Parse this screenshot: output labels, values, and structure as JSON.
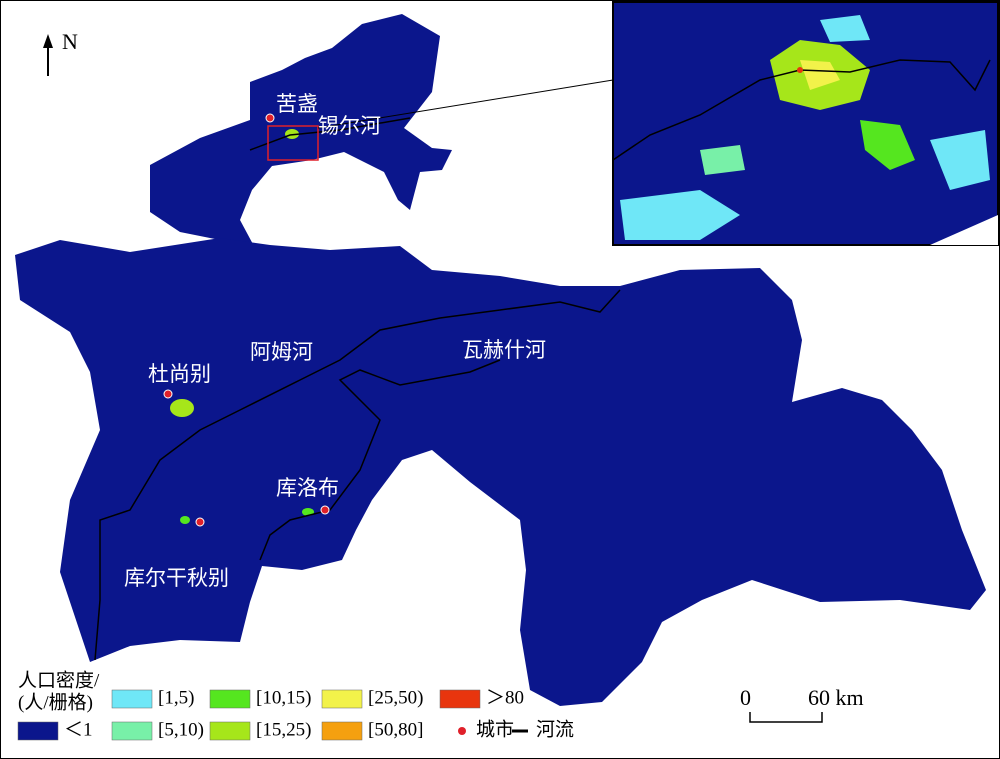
{
  "north_arrow": "N",
  "place_labels": [
    {
      "text": "苦盏",
      "kind": "city"
    },
    {
      "text": "锡尔河",
      "kind": "river"
    },
    {
      "text": "阿姆河",
      "kind": "river"
    },
    {
      "text": "瓦赫什河",
      "kind": "river"
    },
    {
      "text": "杜尚别",
      "kind": "city"
    },
    {
      "text": "库洛布",
      "kind": "city"
    },
    {
      "text": "库尔干秋别",
      "kind": "city"
    }
  ],
  "legend": {
    "title": [
      "人口密度/",
      "(人/栅格)"
    ],
    "items": [
      {
        "label": "＜1",
        "color": "#0b168c"
      },
      {
        "label": "[1,5)",
        "color": "#6fe7f7"
      },
      {
        "label": "[5,10)",
        "color": "#78f0a8"
      },
      {
        "label": "[10,15)",
        "color": "#55e61f"
      },
      {
        "label": "[15,25)",
        "color": "#a6e61a"
      },
      {
        "label": "[25,50)",
        "color": "#f2f24a"
      },
      {
        "label": "[50,80]",
        "color": "#f5a00f"
      },
      {
        "label": "＞80",
        "color": "#e8350e"
      }
    ],
    "city": "城市",
    "river": "河流"
  },
  "scale_bar": {
    "start": "0",
    "end": "60 km"
  }
}
